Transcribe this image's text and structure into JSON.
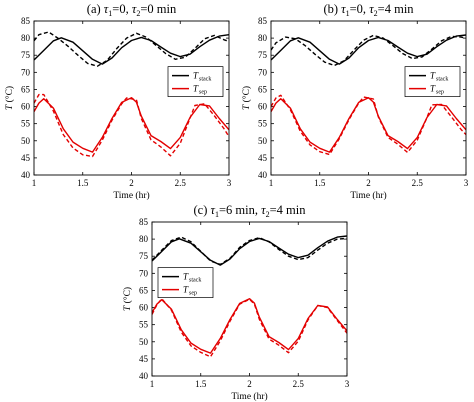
{
  "chart_data": [
    {
      "type": "line",
      "title": {
        "prefix": "(a) ",
        "s1": "τ",
        "sub1": "1",
        "mid": "=0, ",
        "s2": "τ",
        "sub2": "2",
        "suffix": "=0 min"
      },
      "xlabel": "Time (hr)",
      "ylabel": {
        "main": "T",
        "unit": " (°C)"
      },
      "xlim": [
        1,
        3
      ],
      "ylim": [
        40,
        85
      ],
      "xticks": [
        "1",
        "1.5",
        "2",
        "2.5",
        "3"
      ],
      "yticks": [
        "40",
        "45",
        "50",
        "55",
        "60",
        "65",
        "70",
        "75",
        "80",
        "85"
      ],
      "legend": {
        "placement": "right-middle",
        "entries": [
          {
            "main": "T",
            "sub": "stack"
          },
          {
            "main": "T",
            "sub": "sep"
          }
        ]
      },
      "series": [
        {
          "color": "#000000",
          "dash": false,
          "x": [
            1,
            1.1,
            1.2,
            1.28,
            1.4,
            1.5,
            1.6,
            1.7,
            1.8,
            1.9,
            2.0,
            2.1,
            2.2,
            2.3,
            2.4,
            2.5,
            2.6,
            2.7,
            2.8,
            2.9,
            3.0
          ],
          "y": [
            73.6,
            76.4,
            79.2,
            80.1,
            78.8,
            76.3,
            73.8,
            72.4,
            74.2,
            77.2,
            79.3,
            80.2,
            79.3,
            77.4,
            75.6,
            74.6,
            75.3,
            77.5,
            79.4,
            80.6,
            81.0
          ]
        },
        {
          "color": "#000000",
          "dash": true,
          "x": [
            1,
            1.05,
            1.15,
            1.25,
            1.35,
            1.45,
            1.55,
            1.65,
            1.75,
            1.85,
            1.95,
            2.05,
            2.15,
            2.25,
            2.35,
            2.45,
            2.55,
            2.65,
            2.75,
            2.85,
            2.95,
            3.0
          ],
          "y": [
            79.2,
            81.0,
            81.8,
            79.9,
            77.6,
            75.0,
            72.6,
            71.8,
            73.5,
            77.0,
            80.0,
            81.4,
            80.3,
            77.9,
            75.5,
            73.8,
            74.4,
            77.0,
            79.8,
            80.8,
            79.5,
            79.0
          ]
        },
        {
          "color": "#e30000",
          "dash": false,
          "x": [
            1,
            1.05,
            1.1,
            1.2,
            1.3,
            1.4,
            1.5,
            1.6,
            1.7,
            1.8,
            1.9,
            2.0,
            2.05,
            2.1,
            2.2,
            2.3,
            2.4,
            2.5,
            2.6,
            2.7,
            2.8,
            2.9,
            3.0
          ],
          "y": [
            58.5,
            61.0,
            62.3,
            59.5,
            53.5,
            49.6,
            47.8,
            46.7,
            51.0,
            56.5,
            61.2,
            62.6,
            61.3,
            57.2,
            51.5,
            49.8,
            47.7,
            51.0,
            56.8,
            60.6,
            60.2,
            56.5,
            53.2
          ]
        },
        {
          "color": "#e30000",
          "dash": true,
          "x": [
            1,
            1.05,
            1.1,
            1.2,
            1.3,
            1.4,
            1.5,
            1.6,
            1.7,
            1.8,
            1.9,
            1.95,
            2.05,
            2.1,
            2.2,
            2.3,
            2.4,
            2.5,
            2.6,
            2.65,
            2.75,
            2.85,
            2.95,
            3.0
          ],
          "y": [
            61.0,
            63.5,
            63.5,
            58.6,
            51.8,
            47.9,
            45.9,
            45.4,
            50.2,
            56.0,
            60.8,
            62.5,
            62.0,
            56.5,
            50.3,
            48.2,
            45.6,
            49.3,
            56.6,
            60.3,
            60.8,
            57.3,
            53.5,
            51.2
          ]
        }
      ]
    },
    {
      "type": "line",
      "title": {
        "prefix": "(b) ",
        "s1": "τ",
        "sub1": "1",
        "mid": "=0, ",
        "s2": "τ",
        "sub2": "2",
        "suffix": "=4 min"
      },
      "xlabel": "Time (hr)",
      "ylabel": {
        "main": "T",
        "unit": " (°C)"
      },
      "xlim": [
        1,
        3
      ],
      "ylim": [
        40,
        85
      ],
      "xticks": [
        "1",
        "1.5",
        "2",
        "2.5",
        "3"
      ],
      "yticks": [
        "40",
        "45",
        "50",
        "55",
        "60",
        "65",
        "70",
        "75",
        "80",
        "85"
      ],
      "legend": {
        "placement": "right-middle",
        "entries": [
          {
            "main": "T",
            "sub": "stack"
          },
          {
            "main": "T",
            "sub": "sep"
          }
        ]
      },
      "series": [
        {
          "color": "#000000",
          "dash": false,
          "x": [
            1,
            1.1,
            1.2,
            1.28,
            1.4,
            1.5,
            1.6,
            1.7,
            1.8,
            1.9,
            2.0,
            2.1,
            2.2,
            2.3,
            2.4,
            2.5,
            2.6,
            2.7,
            2.8,
            2.9,
            3.0
          ],
          "y": [
            73.6,
            76.4,
            79.2,
            80.1,
            78.8,
            76.3,
            73.8,
            72.4,
            74.2,
            77.2,
            79.3,
            80.2,
            79.3,
            77.4,
            75.6,
            74.6,
            75.3,
            77.5,
            79.4,
            80.6,
            80.9
          ]
        },
        {
          "color": "#000000",
          "dash": true,
          "x": [
            1,
            1.05,
            1.15,
            1.25,
            1.35,
            1.45,
            1.55,
            1.65,
            1.75,
            1.85,
            1.95,
            2.05,
            2.15,
            2.25,
            2.35,
            2.45,
            2.55,
            2.65,
            2.75,
            2.85,
            2.95,
            3.0
          ],
          "y": [
            76.5,
            78.6,
            80.3,
            79.8,
            77.8,
            75.3,
            73.0,
            72.0,
            73.4,
            76.5,
            79.4,
            80.8,
            80.0,
            77.8,
            75.5,
            74.0,
            74.5,
            76.8,
            79.2,
            80.5,
            80.3,
            80.0
          ]
        },
        {
          "color": "#e30000",
          "dash": false,
          "x": [
            1,
            1.05,
            1.1,
            1.2,
            1.3,
            1.4,
            1.5,
            1.6,
            1.7,
            1.8,
            1.9,
            2.0,
            2.05,
            2.1,
            2.2,
            2.3,
            2.4,
            2.5,
            2.6,
            2.7,
            2.8,
            2.9,
            3.0
          ],
          "y": [
            58.5,
            61.0,
            62.3,
            59.5,
            53.5,
            49.6,
            47.8,
            46.7,
            51.0,
            56.5,
            61.2,
            62.6,
            61.3,
            57.2,
            51.5,
            49.8,
            47.7,
            51.0,
            56.8,
            60.6,
            60.2,
            56.5,
            53.2
          ]
        },
        {
          "color": "#e30000",
          "dash": true,
          "x": [
            1,
            1.05,
            1.1,
            1.2,
            1.3,
            1.4,
            1.5,
            1.6,
            1.7,
            1.8,
            1.9,
            1.95,
            2.05,
            2.1,
            2.2,
            2.3,
            2.4,
            2.5,
            2.6,
            2.65,
            2.75,
            2.85,
            2.95,
            3.0
          ],
          "y": [
            60.0,
            62.5,
            63.3,
            59.0,
            52.8,
            48.8,
            46.8,
            46.0,
            50.6,
            56.2,
            61.0,
            62.8,
            62.2,
            57.0,
            51.0,
            49.0,
            46.6,
            50.2,
            56.8,
            60.5,
            60.6,
            57.0,
            53.3,
            51.8
          ]
        }
      ]
    },
    {
      "type": "line",
      "title": {
        "prefix": "(c) ",
        "s1": "τ",
        "sub1": "1",
        "mid": "=6 min, ",
        "s2": "τ",
        "sub2": "2",
        "suffix": "=4 min"
      },
      "xlabel": "Time (hr)",
      "ylabel": {
        "main": "T",
        "unit": " (°C)"
      },
      "xlim": [
        1,
        3
      ],
      "ylim": [
        40,
        85
      ],
      "xticks": [
        "1",
        "1.5",
        "2",
        "2.5",
        "3"
      ],
      "yticks": [
        "40",
        "45",
        "50",
        "55",
        "60",
        "65",
        "70",
        "75",
        "80",
        "85"
      ],
      "legend": {
        "placement": "left-middle",
        "entries": [
          {
            "main": "T",
            "sub": "stack"
          },
          {
            "main": "T",
            "sub": "sep"
          }
        ]
      },
      "series": [
        {
          "color": "#000000",
          "dash": false,
          "x": [
            1,
            1.1,
            1.2,
            1.28,
            1.4,
            1.5,
            1.6,
            1.7,
            1.8,
            1.9,
            2.0,
            2.1,
            2.2,
            2.3,
            2.4,
            2.5,
            2.6,
            2.7,
            2.8,
            2.9,
            3.0
          ],
          "y": [
            73.6,
            76.4,
            79.2,
            80.1,
            78.8,
            76.3,
            73.8,
            72.4,
            74.2,
            77.2,
            79.3,
            80.2,
            79.3,
            77.4,
            75.6,
            74.6,
            75.3,
            77.5,
            79.4,
            80.6,
            80.9
          ]
        },
        {
          "color": "#000000",
          "dash": true,
          "x": [
            1,
            1.1,
            1.2,
            1.3,
            1.4,
            1.5,
            1.6,
            1.7,
            1.8,
            1.9,
            2.0,
            2.1,
            2.2,
            2.3,
            2.4,
            2.5,
            2.6,
            2.7,
            2.8,
            2.9,
            3.0
          ],
          "y": [
            73.8,
            76.8,
            79.6,
            80.6,
            79.2,
            76.4,
            73.6,
            72.6,
            74.4,
            77.6,
            79.6,
            80.4,
            79.2,
            77.0,
            75.0,
            74.0,
            74.6,
            76.8,
            78.8,
            80.0,
            80.2
          ]
        },
        {
          "color": "#e30000",
          "dash": false,
          "x": [
            1,
            1.05,
            1.1,
            1.2,
            1.3,
            1.4,
            1.5,
            1.6,
            1.7,
            1.8,
            1.9,
            2.0,
            2.05,
            2.1,
            2.2,
            2.3,
            2.4,
            2.5,
            2.6,
            2.7,
            2.8,
            2.9,
            3.0
          ],
          "y": [
            58.5,
            61.0,
            62.3,
            59.5,
            53.5,
            49.6,
            47.8,
            46.7,
            51.0,
            56.5,
            61.2,
            62.6,
            61.3,
            57.2,
            51.5,
            49.8,
            47.7,
            51.0,
            56.8,
            60.6,
            60.2,
            56.5,
            53.2
          ]
        },
        {
          "color": "#e30000",
          "dash": true,
          "x": [
            1,
            1.05,
            1.1,
            1.2,
            1.3,
            1.4,
            1.5,
            1.6,
            1.7,
            1.8,
            1.9,
            2.0,
            2.05,
            2.1,
            2.2,
            2.3,
            2.4,
            2.5,
            2.6,
            2.7,
            2.8,
            2.9,
            3.0
          ],
          "y": [
            58.0,
            60.8,
            62.6,
            59.2,
            52.8,
            48.8,
            46.9,
            45.6,
            50.3,
            56.0,
            61.0,
            62.4,
            61.0,
            56.6,
            50.8,
            49.0,
            46.8,
            50.2,
            56.4,
            60.6,
            60.0,
            56.2,
            52.5
          ]
        }
      ]
    }
  ]
}
